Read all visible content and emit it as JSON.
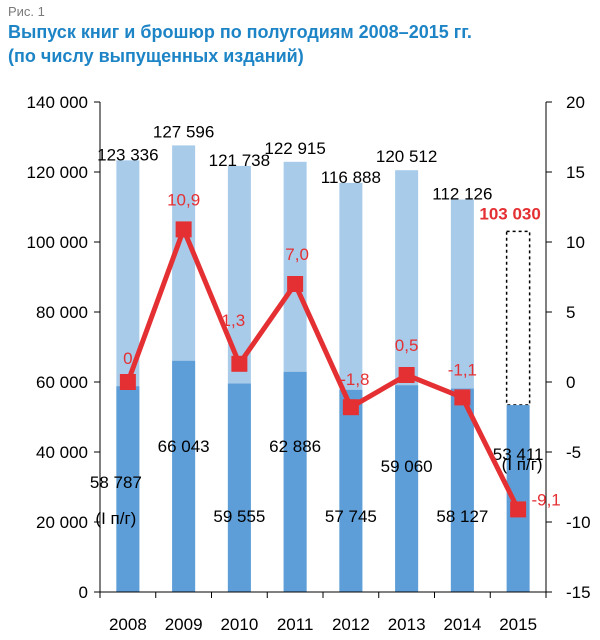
{
  "figure_label": "Рис. 1",
  "title_line1": "Выпуск книг и брошюр по полугодиям 2008–2015 гг.",
  "title_line2": "(по числу выпущенных изданий)",
  "colors": {
    "total_bar": "#a8cbea",
    "first_half_bar": "#5e9ed8",
    "growth_line": "#e53033",
    "axis": "#000000",
    "title": "#1d84c6"
  },
  "chart_data": {
    "type": "bar",
    "categories": [
      "2008",
      "2009",
      "2010",
      "2011",
      "2012",
      "2013",
      "2014",
      "2015"
    ],
    "series": [
      {
        "role": "annual_total",
        "values": [
          123336,
          127596,
          121738,
          122915,
          116888,
          120512,
          112126,
          103030
        ],
        "labels": [
          "123 336",
          "127 596",
          "121 738",
          "122 915",
          "116 888",
          "120 512",
          "112 126",
          "103 030"
        ],
        "estimated_last": true
      },
      {
        "role": "first_half",
        "values": [
          58787,
          66043,
          59555,
          62886,
          57745,
          59060,
          58127,
          53411
        ],
        "labels": [
          "58 787",
          "66 043",
          "59 555",
          "62 886",
          "57 745",
          "59 060",
          "58 127",
          "53 411"
        ],
        "sub_label": "(I п/г)"
      },
      {
        "role": "growth_percent",
        "type": "line",
        "axis": "right",
        "values": [
          0,
          10.9,
          1.3,
          7.0,
          -1.8,
          0.5,
          -1.1,
          -9.1
        ],
        "labels": [
          "0",
          "10,9",
          "1,3",
          "7,0",
          "-1,8",
          "0,5",
          "-1,1",
          "-9,1"
        ]
      }
    ],
    "ylim": [
      0,
      140000
    ],
    "y_ticks": [
      0,
      20000,
      40000,
      60000,
      80000,
      100000,
      120000,
      140000
    ],
    "y_tick_labels": [
      "0",
      "20 000",
      "40 000",
      "60 000",
      "80 000",
      "100 000",
      "120 000",
      "140 000"
    ],
    "y2lim": [
      -15,
      20
    ],
    "y2_ticks": [
      -15,
      -10,
      -5,
      0,
      5,
      10,
      15,
      20
    ],
    "y2_tick_labels": [
      "-15",
      "-10",
      "-5",
      "0",
      "5",
      "10",
      "15",
      "20"
    ],
    "grid": false,
    "legend": "none"
  }
}
